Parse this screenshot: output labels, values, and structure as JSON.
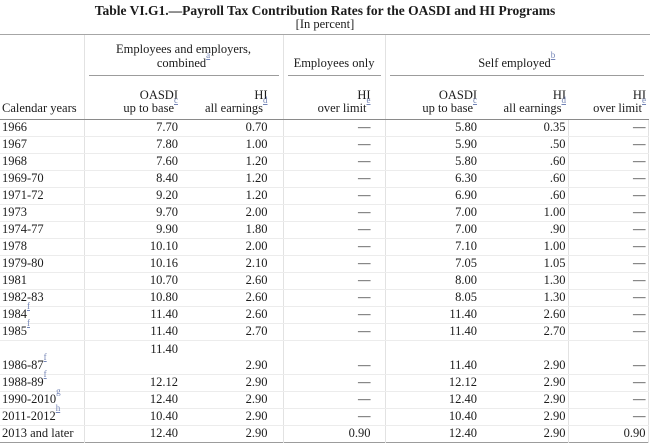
{
  "title": "Table VI.G1.—Payroll Tax Contribution Rates for the OASDI and HI Programs",
  "subtitle": "[In percent]",
  "colors": {
    "footnote_link": "#7283b5",
    "text": "#1c1c1c",
    "header_rule": "#8a8a8a",
    "row_rule": "#ececec"
  },
  "table": {
    "groups": [
      {
        "line1": "Employees and employers,",
        "line2": "combined",
        "footnote": "a"
      },
      {
        "line1": "Employees only",
        "line2": "",
        "footnote": ""
      },
      {
        "line1": "Self employed",
        "line2": "",
        "footnote": "b"
      }
    ],
    "columns": [
      {
        "line1": "",
        "line2": "Calendar years",
        "footnote": ""
      },
      {
        "line1": "OASDI",
        "line2": "up to base",
        "footnote": "c"
      },
      {
        "line1": "HI",
        "line2": "all earnings",
        "footnote": "d"
      },
      {
        "line1": "HI",
        "line2": "over limit",
        "footnote": "e"
      },
      {
        "line1": "OASDI",
        "line2": "up to base",
        "footnote": "c"
      },
      {
        "line1": "HI",
        "line2": "all earnings",
        "footnote": "d"
      },
      {
        "line1": "HI",
        "line2": "over limit",
        "footnote": "e"
      }
    ],
    "rows": [
      {
        "year": "1966",
        "footnote": "",
        "tall": false,
        "values": [
          "7.70",
          "0.70",
          "—",
          "5.80",
          "0.35",
          "—"
        ]
      },
      {
        "year": "1967",
        "footnote": "",
        "tall": false,
        "values": [
          "7.80",
          "1.00",
          "—",
          "5.90",
          ".50",
          "—"
        ]
      },
      {
        "year": "1968",
        "footnote": "",
        "tall": false,
        "values": [
          "7.60",
          "1.20",
          "—",
          "5.80",
          ".60",
          "—"
        ]
      },
      {
        "year": "1969-70",
        "footnote": "",
        "tall": false,
        "values": [
          "8.40",
          "1.20",
          "—",
          "6.30",
          ".60",
          "—"
        ]
      },
      {
        "year": "1971-72",
        "footnote": "",
        "tall": false,
        "values": [
          "9.20",
          "1.20",
          "—",
          "6.90",
          ".60",
          "—"
        ]
      },
      {
        "year": "1973",
        "footnote": "",
        "tall": false,
        "values": [
          "9.70",
          "2.00",
          "—",
          "7.00",
          "1.00",
          "—"
        ]
      },
      {
        "year": "1974-77",
        "footnote": "",
        "tall": false,
        "values": [
          "9.90",
          "1.80",
          "—",
          "7.00",
          ".90",
          "—"
        ]
      },
      {
        "year": "1978",
        "footnote": "",
        "tall": false,
        "values": [
          "10.10",
          "2.00",
          "—",
          "7.10",
          "1.00",
          "—"
        ]
      },
      {
        "year": "1979-80",
        "footnote": "",
        "tall": false,
        "values": [
          "10.16",
          "2.10",
          "—",
          "7.05",
          "1.05",
          "—"
        ]
      },
      {
        "year": "1981",
        "footnote": "",
        "tall": false,
        "values": [
          "10.70",
          "2.60",
          "—",
          "8.00",
          "1.30",
          "—"
        ]
      },
      {
        "year": "1982-83",
        "footnote": "",
        "tall": false,
        "values": [
          "10.80",
          "2.60",
          "—",
          "8.05",
          "1.30",
          "—"
        ]
      },
      {
        "year": "1984",
        "footnote": "f",
        "tall": false,
        "values": [
          "11.40",
          "2.60",
          "—",
          "11.40",
          "2.60",
          "—"
        ]
      },
      {
        "year": "1985",
        "footnote": "f",
        "tall": false,
        "values": [
          "11.40",
          "2.70",
          "—",
          "11.40",
          "2.70",
          "—"
        ]
      },
      {
        "year": "1986-87",
        "footnote": "f",
        "tall": true,
        "values": [
          "11.40",
          "2.90",
          "—",
          "11.40",
          "2.90",
          "—"
        ]
      },
      {
        "year": "1988-89",
        "footnote": "f",
        "tall": false,
        "values": [
          "12.12",
          "2.90",
          "—",
          "12.12",
          "2.90",
          "—"
        ]
      },
      {
        "year": "1990-2010",
        "footnote": "g",
        "tall": false,
        "values": [
          "12.40",
          "2.90",
          "—",
          "12.40",
          "2.90",
          "—"
        ]
      },
      {
        "year": "2011-2012",
        "footnote": "h",
        "tall": false,
        "values": [
          "10.40",
          "2.90",
          "—",
          "10.40",
          "2.90",
          "—"
        ]
      },
      {
        "year": "2013 and later",
        "footnote": "",
        "tall": false,
        "values": [
          "12.40",
          "2.90",
          "0.90",
          "12.40",
          "2.90",
          "0.90"
        ]
      }
    ]
  }
}
